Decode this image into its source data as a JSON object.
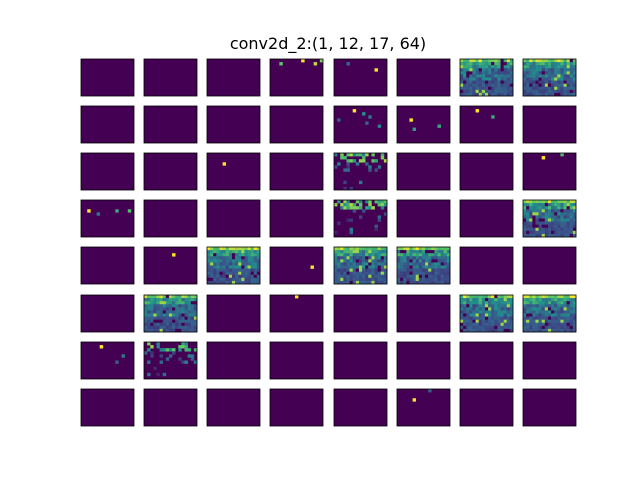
{
  "figure": {
    "title": "conv2d_2:(1, 12, 17, 64)"
  },
  "chart_data": {
    "type": "heatmap",
    "title": "conv2d_2:(1, 12, 17, 64)",
    "layer": "conv2d_2",
    "shape": [
      1,
      12,
      17,
      64
    ],
    "grid": {
      "rows": 8,
      "cols": 8
    },
    "colormap": {
      "name": "viridis",
      "stops": [
        "#440154",
        "#3b528b",
        "#21918c",
        "#5ec962",
        "#fde725"
      ]
    },
    "feature_map_size": {
      "rows": 12,
      "cols": 17
    },
    "active_maps": [
      {
        "index": 3,
        "pattern": "sparse",
        "cells": [
          [
            1,
            3,
            0.75
          ],
          [
            0,
            10,
            1.0
          ],
          [
            1,
            14,
            0.9
          ],
          [
            0,
            16,
            0.8
          ]
        ]
      },
      {
        "index": 4,
        "pattern": "sparse",
        "cells": [
          [
            3,
            13,
            1.0
          ],
          [
            1,
            4,
            0.35
          ]
        ]
      },
      {
        "index": 6,
        "pattern": "dense"
      },
      {
        "index": 7,
        "pattern": "dense"
      },
      {
        "index": 12,
        "pattern": "sparse",
        "cells": [
          [
            1,
            6,
            1.0
          ],
          [
            2,
            9,
            0.5
          ],
          [
            3,
            11,
            0.4
          ],
          [
            4,
            1,
            0.3
          ],
          [
            5,
            10,
            0.3
          ],
          [
            6,
            14,
            0.45
          ]
        ]
      },
      {
        "index": 13,
        "pattern": "sparse",
        "cells": [
          [
            4,
            4,
            1.0
          ],
          [
            6,
            13,
            0.6
          ],
          [
            7,
            5,
            0.55
          ]
        ]
      },
      {
        "index": 14,
        "pattern": "sparse",
        "cells": [
          [
            1,
            5,
            1.0
          ],
          [
            3,
            10,
            0.6
          ]
        ]
      },
      {
        "index": 18,
        "pattern": "sparse",
        "cells": [
          [
            3,
            5,
            1.0
          ]
        ]
      },
      {
        "index": 20,
        "pattern": "scatter"
      },
      {
        "index": 23,
        "pattern": "sparse",
        "cells": [
          [
            1,
            6,
            1.0
          ],
          [
            0,
            12,
            0.7
          ]
        ]
      },
      {
        "index": 24,
        "pattern": "sparse",
        "cells": [
          [
            3,
            2,
            1.0
          ],
          [
            3,
            11,
            0.6
          ],
          [
            3,
            15,
            0.7
          ],
          [
            4,
            5,
            0.4
          ]
        ]
      },
      {
        "index": 28,
        "pattern": "scatter"
      },
      {
        "index": 31,
        "pattern": "dense"
      },
      {
        "index": 33,
        "pattern": "sparse",
        "cells": [
          [
            2,
            9,
            1.0
          ]
        ]
      },
      {
        "index": 34,
        "pattern": "dense"
      },
      {
        "index": 35,
        "pattern": "sparse",
        "cells": [
          [
            6,
            13,
            1.0
          ]
        ]
      },
      {
        "index": 36,
        "pattern": "dense"
      },
      {
        "index": 37,
        "pattern": "dense"
      },
      {
        "index": 41,
        "pattern": "dense"
      },
      {
        "index": 43,
        "pattern": "sparse",
        "cells": [
          [
            0,
            8,
            1.0
          ]
        ]
      },
      {
        "index": 46,
        "pattern": "dense"
      },
      {
        "index": 47,
        "pattern": "dense"
      },
      {
        "index": 48,
        "pattern": "sparse",
        "cells": [
          [
            1,
            6,
            1.0
          ],
          [
            4,
            13,
            0.4
          ],
          [
            6,
            11,
            0.3
          ]
        ]
      },
      {
        "index": 49,
        "pattern": "scatter"
      },
      {
        "index": 61,
        "pattern": "sparse",
        "cells": [
          [
            3,
            5,
            1.0
          ],
          [
            0,
            10,
            0.3
          ]
        ]
      }
    ]
  }
}
